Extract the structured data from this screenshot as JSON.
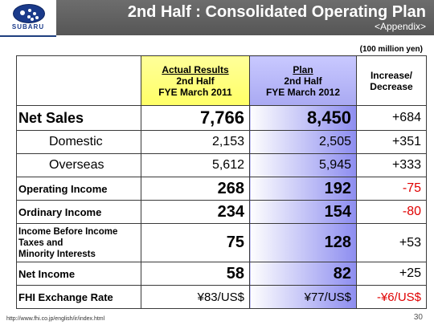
{
  "logo": {
    "text": "SUBARU"
  },
  "header": {
    "title": "2nd Half : Consolidated Operating Plan",
    "subtitle": "<Appendix>"
  },
  "unit_note": "(100 million yen)",
  "columns": {
    "actual": [
      "Actual Results",
      "2nd Half",
      "FYE March 2011"
    ],
    "plan": [
      "Plan",
      "2nd Half",
      "FYE March 2012"
    ],
    "change": [
      "Increase/",
      "Decrease"
    ]
  },
  "rows": [
    {
      "label": [
        "Net Sales"
      ],
      "actual": "7,766",
      "plan": "8,450",
      "change": "+684"
    },
    {
      "label": [
        "Domestic"
      ],
      "actual": "2,153",
      "plan": "2,505",
      "change": "+351"
    },
    {
      "label": [
        "Overseas"
      ],
      "actual": "5,612",
      "plan": "5,945",
      "change": "+333"
    },
    {
      "label": [
        "Operating Income"
      ],
      "actual": "268",
      "plan": "192",
      "change": "-75"
    },
    {
      "label": [
        "Ordinary Income"
      ],
      "actual": "234",
      "plan": "154",
      "change": "-80"
    },
    {
      "label": [
        "Income Before Income",
        "Taxes and",
        "Minority Interests"
      ],
      "actual": "75",
      "plan": "128",
      "change": "+53"
    },
    {
      "label": [
        "Net Income"
      ],
      "actual": "58",
      "plan": "82",
      "change": "+25"
    },
    {
      "label": [
        "FHI Exchange Rate"
      ],
      "actual": "¥83/US$",
      "plan": "¥77/US$",
      "change": "-¥6/US$"
    }
  ],
  "colors": {
    "negative": "#e00000",
    "header_bg": "#5f5f5f",
    "actual_header": "#ffff66",
    "plan_header": "#a9a9f2",
    "plan_cell": "#8d8df0"
  },
  "footer": {
    "url": "http://www.fhi.co.jp/english/ir/index.html",
    "page": "30"
  }
}
